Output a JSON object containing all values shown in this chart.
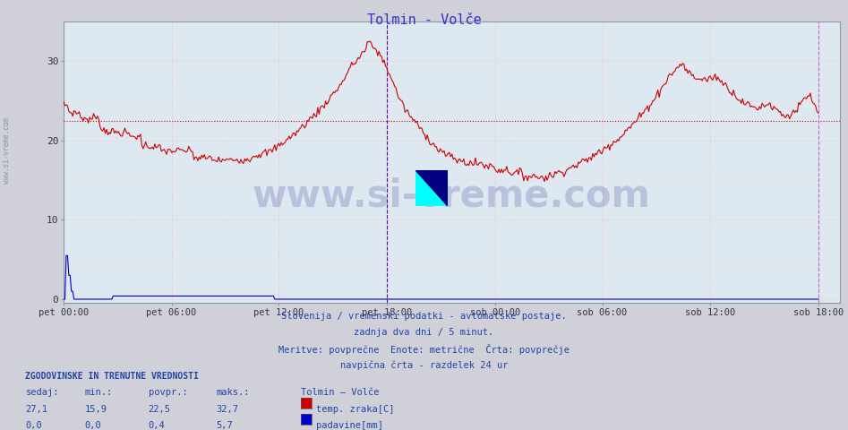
{
  "title": "Tolmin - Volče",
  "title_color": "#3333cc",
  "bg_color": "#d0d0d8",
  "plot_bg_color": "#dde8f0",
  "grid_h_color": "#ffaaaa",
  "grid_v_color": "#ffcccc",
  "x_labels": [
    "pet 00:00",
    "pet 06:00",
    "pet 12:00",
    "pet 18:00",
    "sob 00:00",
    "sob 06:00",
    "sob 12:00",
    "sob 18:00"
  ],
  "x_ticks_norm": [
    0.0,
    0.167,
    0.333,
    0.5,
    0.667,
    0.833,
    1.0,
    1.167
  ],
  "y_ticks": [
    0,
    10,
    20,
    30
  ],
  "ylim": [
    -0.5,
    35
  ],
  "xlim": [
    0,
    1.2
  ],
  "avg_line_y": 22.5,
  "avg_line_color": "#cc0000",
  "temp_line_color": "#cc0000",
  "rain_line_color": "#0000cc",
  "vert_line1_x": 0.5,
  "vert_line2_x": 1.167,
  "vert_line1_color": "#8800aa",
  "vert_line2_color": "#cc44cc",
  "footer_lines": [
    "Slovenija / vremenski podatki - avtomatske postaje.",
    "zadnja dva dni / 5 minut.",
    "Meritve: povprečne  Enote: metrične  Črta: povprečje",
    "navpična črta - razdelek 24 ur"
  ],
  "footer_color": "#2244aa",
  "table_header": "ZGODOVINSKE IN TRENUTNE VREDNOSTI",
  "table_cols": [
    "sedaj:",
    "min.:",
    "povpr.:",
    "maks.:"
  ],
  "table_row1": [
    "27,1",
    "15,9",
    "22,5",
    "32,7"
  ],
  "table_row2": [
    "0,0",
    "0,0",
    "0,4",
    "5,7"
  ],
  "legend_title": "Tolmin – Volče",
  "legend_items": [
    "temp. zraka[C]",
    "padavine[mm]"
  ],
  "legend_colors": [
    "#cc0000",
    "#0000cc"
  ],
  "watermark_text": "www.si-vreme.com",
  "watermark_color": "#1a1a8c",
  "watermark_alpha": 0.18,
  "sidebar_text": "www.si-vreme.com",
  "sidebar_color": "#6688aa",
  "icon_colors": [
    "#ffff00",
    "#00ffff",
    "#000080"
  ]
}
